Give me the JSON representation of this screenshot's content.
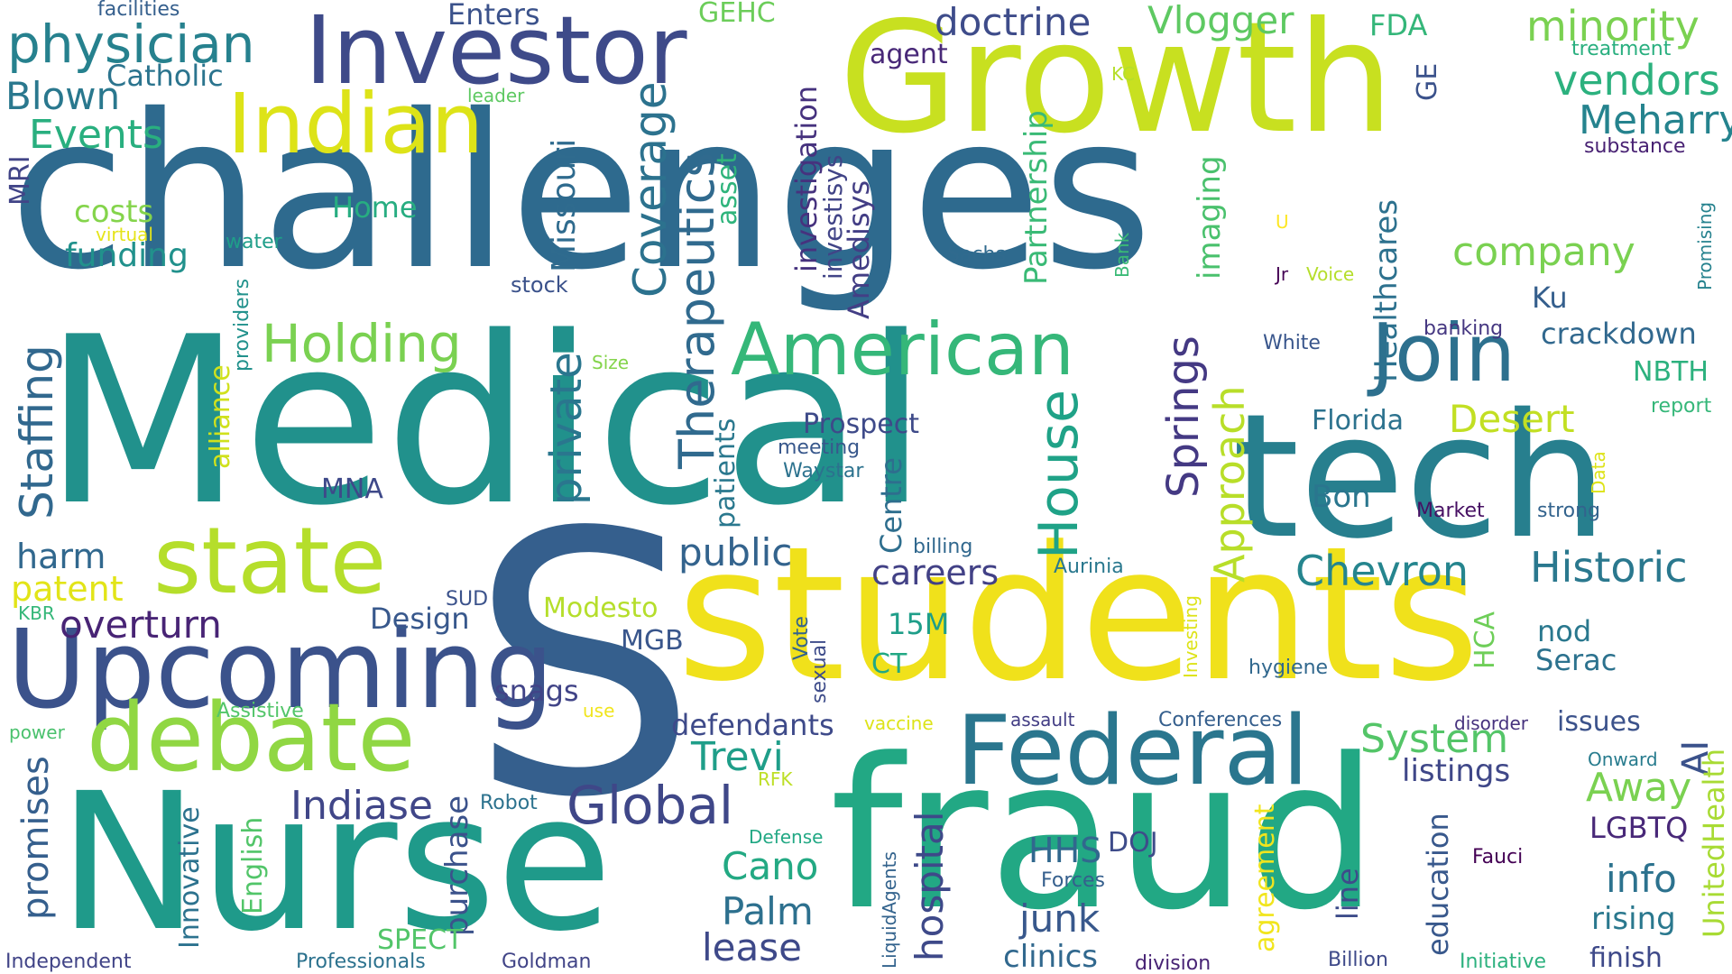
{
  "words": [
    {
      "text": "challenges",
      "color": "#2e6a8e"
    },
    {
      "text": "Medical",
      "color": "#21918c"
    },
    {
      "text": "S",
      "color": "#355f8d"
    },
    {
      "text": "students",
      "color": "#f0e11b"
    },
    {
      "text": "Nurse",
      "color": "#1f9a8a"
    },
    {
      "text": "fraud",
      "color": "#22a884"
    },
    {
      "text": "tech",
      "color": "#277f8e"
    },
    {
      "text": "Growth",
      "color": "#c8e020"
    },
    {
      "text": "Investor",
      "color": "#3e4a89"
    },
    {
      "text": "Upcoming",
      "color": "#3b528b"
    },
    {
      "text": "Federal",
      "color": "#2a768e"
    },
    {
      "text": "debate",
      "color": "#90d743"
    },
    {
      "text": "state",
      "color": "#b5de2b"
    },
    {
      "text": "Indian",
      "color": "#dde318"
    },
    {
      "text": "Join",
      "color": "#2d708e"
    },
    {
      "text": "American",
      "color": "#35b779"
    },
    {
      "text": "physician",
      "color": "#26818e"
    },
    {
      "text": "Holding",
      "color": "#7ad151"
    },
    {
      "text": "Global",
      "color": "#3f4788"
    },
    {
      "text": "Historic",
      "color": "#2a788e"
    },
    {
      "text": "Chevron",
      "color": "#25858e"
    },
    {
      "text": "Staffing",
      "color": "#31688e"
    },
    {
      "text": "Therapeutics",
      "color": "#306a8e"
    },
    {
      "text": "Coverage",
      "color": "#2c728e"
    },
    {
      "text": "Missouri",
      "color": "#2f6b8e"
    },
    {
      "text": "private",
      "color": "#2a768e"
    },
    {
      "text": "House",
      "color": "#1fa287"
    },
    {
      "text": "Springs",
      "color": "#443983"
    },
    {
      "text": "Approach",
      "color": "#b8de29"
    },
    {
      "text": "Partnership",
      "color": "#3aba76"
    },
    {
      "text": "Healthcares",
      "color": "#2d718e"
    },
    {
      "text": "imaging",
      "color": "#4ac16d"
    },
    {
      "text": "minority",
      "color": "#7ad151"
    },
    {
      "text": "vendors",
      "color": "#2cb17e"
    },
    {
      "text": "Meharry",
      "color": "#25838e"
    },
    {
      "text": "company",
      "color": "#7ad151"
    },
    {
      "text": "doctrine",
      "color": "#3e4c8a"
    },
    {
      "text": "Vlogger",
      "color": "#5ec962"
    },
    {
      "text": "Events",
      "color": "#29af7f"
    },
    {
      "text": "Blown",
      "color": "#2a788e"
    },
    {
      "text": "Catholic",
      "color": "#2b748e"
    },
    {
      "text": "Enters",
      "color": "#3b528b"
    },
    {
      "text": "GEHC",
      "color": "#6ccd5a"
    },
    {
      "text": "FDA",
      "color": "#34b679"
    },
    {
      "text": "treatment",
      "color": "#29af7f"
    },
    {
      "text": "facilities",
      "color": "#355f8d"
    },
    {
      "text": "agent",
      "color": "#482878"
    },
    {
      "text": "leader",
      "color": "#5ec962"
    },
    {
      "text": "KC",
      "color": "#b5de2b"
    },
    {
      "text": "GE",
      "color": "#3b528b"
    },
    {
      "text": "substance",
      "color": "#482173"
    },
    {
      "text": "Promising",
      "color": "#26828e"
    },
    {
      "text": "MRI",
      "color": "#414487"
    },
    {
      "text": "costs",
      "color": "#84d44b"
    },
    {
      "text": "virtual",
      "color": "#e5e419"
    },
    {
      "text": "funding",
      "color": "#21918c"
    },
    {
      "text": "Home",
      "color": "#27ad81"
    },
    {
      "text": "water",
      "color": "#1f9e89"
    },
    {
      "text": "providers",
      "color": "#21918c"
    },
    {
      "text": "stock",
      "color": "#3b528b"
    },
    {
      "text": "asset",
      "color": "#2fb47c"
    },
    {
      "text": "investigation",
      "color": "#46327e"
    },
    {
      "text": "investisys",
      "color": "#414487"
    },
    {
      "text": "Amedisys",
      "color": "#433e85"
    },
    {
      "text": "Sachs",
      "color": "#306a8e"
    },
    {
      "text": "Bank",
      "color": "#3aba76"
    },
    {
      "text": "U",
      "color": "#fde725"
    },
    {
      "text": "Jr",
      "color": "#440154"
    },
    {
      "text": "Voice",
      "color": "#b5de2b"
    },
    {
      "text": "Ku",
      "color": "#355f8d"
    },
    {
      "text": "banking",
      "color": "#453781"
    },
    {
      "text": "crackdown",
      "color": "#31688e"
    },
    {
      "text": "White",
      "color": "#39568c"
    },
    {
      "text": "NBTH",
      "color": "#2cb17e"
    },
    {
      "text": "report",
      "color": "#35b779"
    },
    {
      "text": "Florida",
      "color": "#2c728e"
    },
    {
      "text": "Desert",
      "color": "#c2df23"
    },
    {
      "text": "Prospect",
      "color": "#3e4a89"
    },
    {
      "text": "meeting",
      "color": "#38588c"
    },
    {
      "text": "Waystar",
      "color": "#2c728e"
    },
    {
      "text": "patients",
      "color": "#2a788e"
    },
    {
      "text": "Centre",
      "color": "#2e6e8e"
    },
    {
      "text": "Size",
      "color": "#84d44b"
    },
    {
      "text": "alliance",
      "color": "#d0e11c"
    },
    {
      "text": "MNA",
      "color": "#3e4989"
    },
    {
      "text": "Bon",
      "color": "#2a768e"
    },
    {
      "text": "Market",
      "color": "#471063"
    },
    {
      "text": "strong",
      "color": "#33638d"
    },
    {
      "text": "Data",
      "color": "#dde318"
    },
    {
      "text": "harm",
      "color": "#31688e"
    },
    {
      "text": "patent",
      "color": "#e2e418"
    },
    {
      "text": "public",
      "color": "#33638d"
    },
    {
      "text": "careers",
      "color": "#424186"
    },
    {
      "text": "billing",
      "color": "#31688e"
    },
    {
      "text": "Aurinia",
      "color": "#2a788e"
    },
    {
      "text": "KBR",
      "color": "#35b779"
    },
    {
      "text": "overturn",
      "color": "#482475"
    },
    {
      "text": "Design",
      "color": "#38588c"
    },
    {
      "text": "SUD",
      "color": "#3b528b"
    },
    {
      "text": "Modesto",
      "color": "#b5de2b"
    },
    {
      "text": "MGB",
      "color": "#39568c"
    },
    {
      "text": "15M",
      "color": "#1f9e89"
    },
    {
      "text": "Investing",
      "color": "#dde318"
    },
    {
      "text": "HCA",
      "color": "#6ece58"
    },
    {
      "text": "nod",
      "color": "#2a788e"
    },
    {
      "text": "Serac",
      "color": "#2c728e"
    },
    {
      "text": "CT",
      "color": "#22a884"
    },
    {
      "text": "Vote",
      "color": "#33638d"
    },
    {
      "text": "sexual",
      "color": "#3e4c8a"
    },
    {
      "text": "hygiene",
      "color": "#31688e"
    },
    {
      "text": "Assistive",
      "color": "#52c569"
    },
    {
      "text": "use",
      "color": "#f1e51d"
    },
    {
      "text": "snags",
      "color": "#414487"
    },
    {
      "text": "power",
      "color": "#4ac16d"
    },
    {
      "text": "vaccine",
      "color": "#dde318"
    },
    {
      "text": "assault",
      "color": "#433e85"
    },
    {
      "text": "Conferences",
      "color": "#355f8d"
    },
    {
      "text": "disorder",
      "color": "#46327e"
    },
    {
      "text": "issues",
      "color": "#3b528b"
    },
    {
      "text": "defendants",
      "color": "#3e4a89"
    },
    {
      "text": "System",
      "color": "#54c568"
    },
    {
      "text": "Trevi",
      "color": "#1f9e89"
    },
    {
      "text": "listings",
      "color": "#3f4788"
    },
    {
      "text": "AI",
      "color": "#3b528b"
    },
    {
      "text": "Onward",
      "color": "#287c8e"
    },
    {
      "text": "Away",
      "color": "#7ad151"
    },
    {
      "text": "UnitedHealth",
      "color": "#a8db34"
    },
    {
      "text": "promises",
      "color": "#355f8d"
    },
    {
      "text": "Innovative",
      "color": "#2c728e"
    },
    {
      "text": "English",
      "color": "#52c569"
    },
    {
      "text": "Indiase",
      "color": "#404688"
    },
    {
      "text": "Robot",
      "color": "#2c728e"
    },
    {
      "text": "RFK",
      "color": "#bddf26"
    },
    {
      "text": "Defense",
      "color": "#22a884"
    },
    {
      "text": "purchase",
      "color": "#3b528b"
    },
    {
      "text": "hospital",
      "color": "#3e4989"
    },
    {
      "text": "LiquidAgents",
      "color": "#33638d"
    },
    {
      "text": "HHS",
      "color": "#31688e"
    },
    {
      "text": "DOJ",
      "color": "#3e4c8a"
    },
    {
      "text": "Forces",
      "color": "#355f8d"
    },
    {
      "text": "agreement",
      "color": "#f1e51d"
    },
    {
      "text": "line",
      "color": "#3e4c8a"
    },
    {
      "text": "education",
      "color": "#38588c"
    },
    {
      "text": "LGBTQ",
      "color": "#482878"
    },
    {
      "text": "Fauci",
      "color": "#440154"
    },
    {
      "text": "info",
      "color": "#2c728e"
    },
    {
      "text": "rising",
      "color": "#2a788e"
    },
    {
      "text": "Cano",
      "color": "#23a983"
    },
    {
      "text": "Palm",
      "color": "#2d708e"
    },
    {
      "text": "lease",
      "color": "#3e4989"
    },
    {
      "text": "junk",
      "color": "#38588c"
    },
    {
      "text": "clinics",
      "color": "#31688e"
    },
    {
      "text": "SPECT",
      "color": "#52c569"
    },
    {
      "text": "Independent",
      "color": "#414487"
    },
    {
      "text": "Professionals",
      "color": "#2c728e"
    },
    {
      "text": "Goldman",
      "color": "#414487"
    },
    {
      "text": "division",
      "color": "#482475"
    },
    {
      "text": "Billion",
      "color": "#3e4989"
    },
    {
      "text": "Initiative",
      "color": "#2cb17e"
    },
    {
      "text": "finish",
      "color": "#3e4989"
    }
  ]
}
